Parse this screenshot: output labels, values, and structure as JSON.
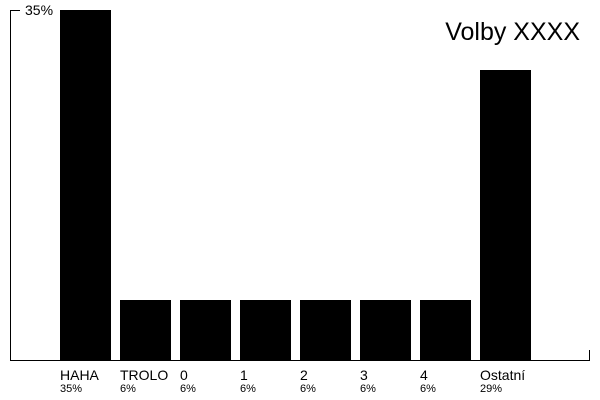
{
  "chart_data": {
    "type": "bar",
    "title": "Volby XXXX",
    "categories": [
      "HAHA",
      "TROLO",
      "0",
      "1",
      "2",
      "3",
      "4",
      "Ostatní"
    ],
    "values": [
      35,
      6,
      6,
      6,
      6,
      6,
      6,
      29
    ],
    "value_labels": [
      "35%",
      "6%",
      "6%",
      "6%",
      "6%",
      "6%",
      "6%",
      "29%"
    ],
    "ylim": [
      0,
      35
    ],
    "y_ticks": [
      35
    ],
    "y_tick_labels": [
      "35%"
    ],
    "grid": false,
    "bar_color": "#000000",
    "axis_color": "#000000"
  }
}
